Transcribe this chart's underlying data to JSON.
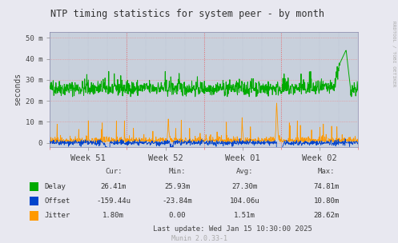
{
  "title": "NTP timing statistics for system peer - by month",
  "ylabel": "seconds",
  "fig_bg_color": "#e8e8f0",
  "plot_bg_color": "#c8d0dc",
  "ytick_labels": [
    "0",
    "10 m",
    "20 m",
    "30 m",
    "40 m",
    "50 m"
  ],
  "ytick_vals": [
    0,
    10,
    20,
    30,
    40,
    50
  ],
  "xtick_labels": [
    "Week 51",
    "Week 52",
    "Week 01",
    "Week 02"
  ],
  "delay_color": "#00aa00",
  "offset_color": "#0044cc",
  "jitter_color": "#ff9900",
  "legend_items": [
    "Delay",
    "Offset",
    "Jitter"
  ],
  "stats_delay": [
    "26.41m",
    "25.93m",
    "27.30m",
    "74.81m"
  ],
  "stats_offset": [
    "-159.44u",
    "-23.84m",
    "104.06u",
    "10.80m"
  ],
  "stats_jitter": [
    "1.80m",
    "0.00",
    "1.51m",
    "28.62m"
  ],
  "last_update": "Last update: Wed Jan 15 10:30:00 2025",
  "munin_version": "Munin 2.0.33-1",
  "rrdtool_label": "RRDTOOL / TOBI OETIKER",
  "ylim_min": -2,
  "ylim_max": 53,
  "xlim_min": 0,
  "xlim_max": 4
}
